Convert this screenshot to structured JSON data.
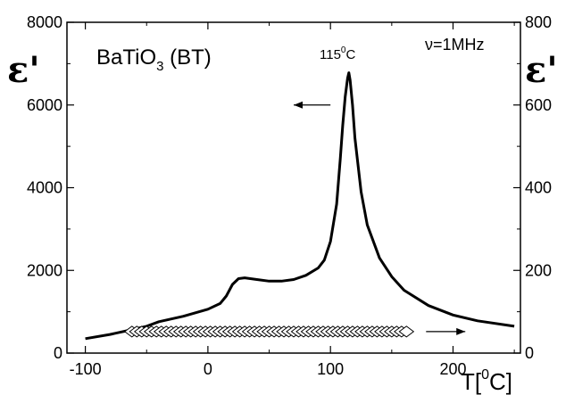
{
  "chart_data": {
    "type": "line",
    "title": "",
    "xlabel": {
      "base": "T[",
      "sup": "0",
      "tail": "C]"
    },
    "ylabel_left": "ε'",
    "ylabel_right": "ε'",
    "xlim": [
      -115,
      255
    ],
    "ylim_left": [
      0,
      8000
    ],
    "ylim_right": [
      0,
      800
    ],
    "x_ticks": [
      -100,
      0,
      100,
      200
    ],
    "x_tick_labels": [
      "-100",
      "0",
      "100",
      "200"
    ],
    "y_left_ticks": [
      0,
      2000,
      4000,
      6000,
      8000
    ],
    "y_left_tick_labels": [
      "0",
      "2000",
      "4000",
      "6000",
      "8000"
    ],
    "y_right_ticks": [
      0,
      200,
      400,
      600,
      800
    ],
    "y_right_tick_labels": [
      "0",
      "200",
      "400",
      "600",
      "800"
    ],
    "annotations": {
      "material": {
        "base": "BaTiO",
        "sub": "3",
        "tail": " (BT)"
      },
      "peak": {
        "base": "115",
        "sup": "0",
        "tail": "C"
      },
      "frequency": "ν=1MHz"
    },
    "series": [
      {
        "axis": "left",
        "style": "solid-line",
        "x": [
          -100,
          -80,
          -60,
          -50,
          -40,
          -20,
          0,
          10,
          15,
          20,
          25,
          30,
          40,
          50,
          60,
          70,
          80,
          90,
          95,
          100,
          105,
          108,
          110,
          112,
          114,
          115,
          116,
          118,
          120,
          125,
          130,
          140,
          150,
          160,
          180,
          200,
          220,
          250
        ],
        "y": [
          350,
          450,
          580,
          650,
          760,
          890,
          1060,
          1200,
          1380,
          1660,
          1800,
          1820,
          1780,
          1740,
          1740,
          1780,
          1880,
          2060,
          2250,
          2700,
          3600,
          4700,
          5500,
          6200,
          6650,
          6780,
          6600,
          6000,
          5200,
          3900,
          3100,
          2300,
          1850,
          1520,
          1150,
          920,
          780,
          650
        ]
      },
      {
        "axis": "right",
        "style": "open-diamond-markers",
        "x": [
          -62,
          -58,
          -54,
          -50,
          -46,
          -42,
          -38,
          -34,
          -30,
          -26,
          -22,
          -18,
          -14,
          -10,
          -6,
          -2,
          2,
          6,
          10,
          14,
          18,
          22,
          26,
          30,
          34,
          38,
          42,
          46,
          50,
          54,
          58,
          62,
          66,
          70,
          74,
          78,
          82,
          86,
          90,
          94,
          98,
          102,
          106,
          110,
          114,
          118,
          122,
          126,
          130,
          134,
          138,
          142,
          146,
          150,
          154,
          158,
          162
        ],
        "y": [
          52,
          52,
          52,
          52,
          52,
          52,
          52,
          52,
          52,
          52,
          52,
          52,
          52,
          52,
          52,
          52,
          52,
          52,
          52,
          52,
          52,
          52,
          52,
          52,
          52,
          52,
          52,
          52,
          52,
          52,
          52,
          52,
          52,
          52,
          52,
          52,
          52,
          52,
          52,
          52,
          52,
          52,
          52,
          52,
          52,
          52,
          52,
          52,
          52,
          52,
          52,
          52,
          52,
          52,
          52,
          52,
          52
        ]
      }
    ],
    "arrows": [
      {
        "direction": "left",
        "x_from": 100,
        "x_to": 70,
        "y": 6000,
        "axis": "left"
      },
      {
        "direction": "right",
        "x_from": 178,
        "x_to": 210,
        "y": 52,
        "axis": "right"
      }
    ]
  }
}
